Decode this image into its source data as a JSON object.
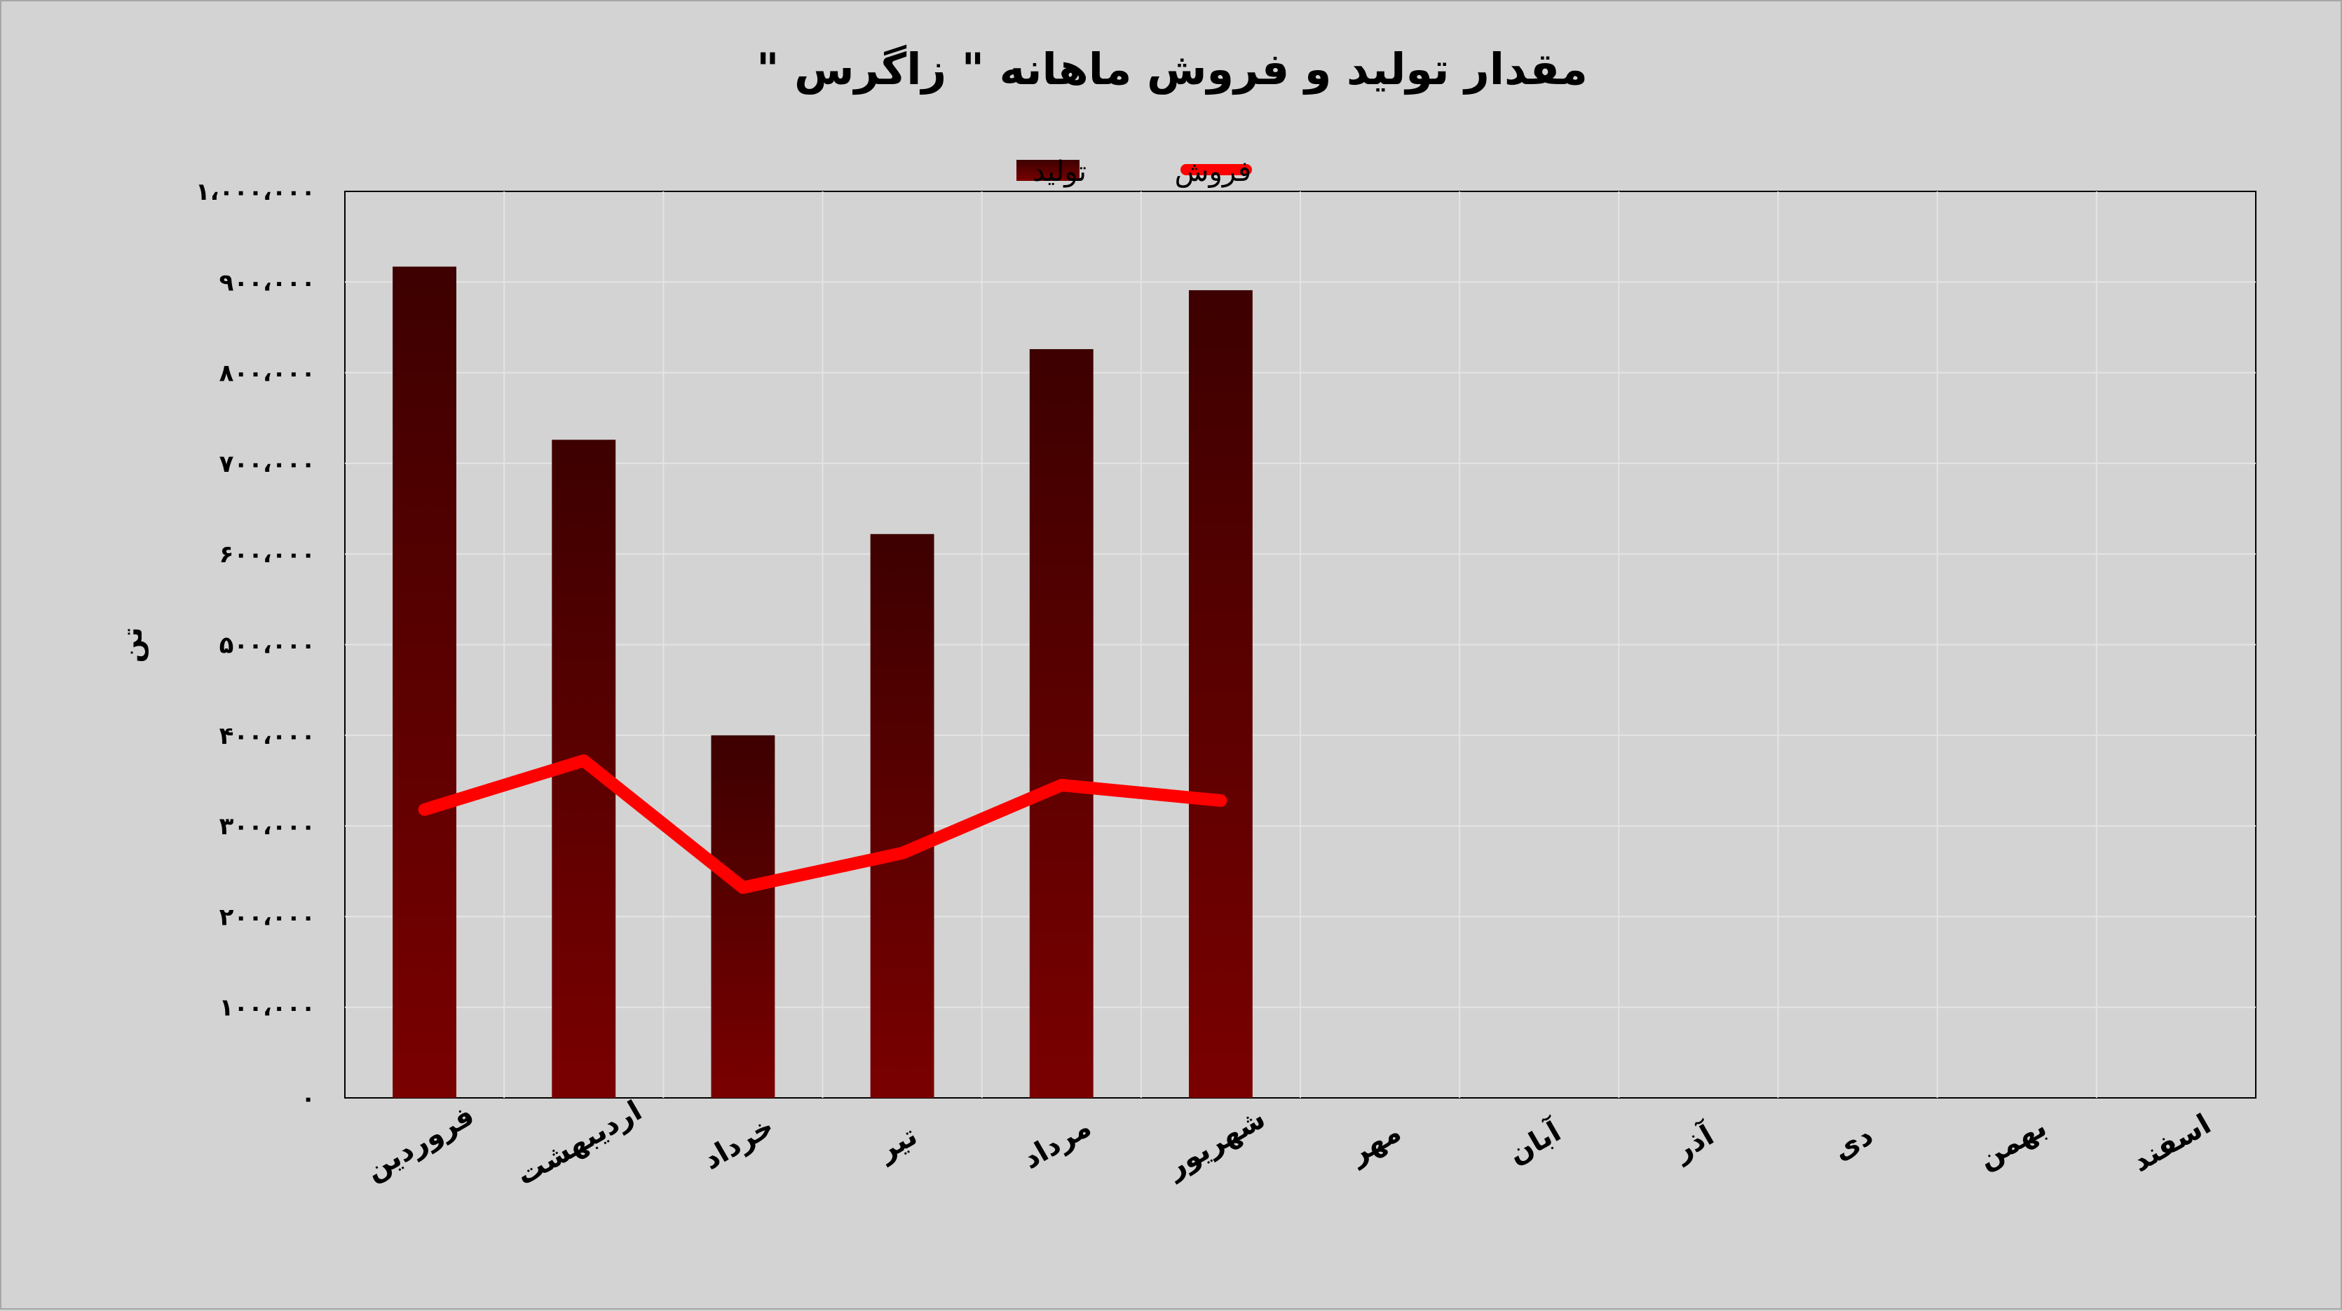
{
  "chart_data": {
    "type": "bar",
    "title": "مقدار تولید و فروش ماهانه \" زاگرس \"",
    "ylabel": "تن",
    "xlabel": "",
    "categories": [
      "فروردین",
      "اردیبهشت",
      "خرداد",
      "تیر",
      "مرداد",
      "شهریور",
      "مهر",
      "آبان",
      "آذر",
      "دی",
      "بهمن",
      "اسفند"
    ],
    "ylim": [
      0,
      1000000
    ],
    "yticks": [
      0,
      100000,
      200000,
      300000,
      400000,
      500000,
      600000,
      700000,
      800000,
      900000,
      1000000
    ],
    "ytick_labels": [
      "۰",
      "۱۰۰،۰۰۰",
      "۲۰۰،۰۰۰",
      "۳۰۰،۰۰۰",
      "۴۰۰،۰۰۰",
      "۵۰۰،۰۰۰",
      "۶۰۰،۰۰۰",
      "۷۰۰،۰۰۰",
      "۸۰۰،۰۰۰",
      "۹۰۰،۰۰۰",
      "۱،۰۰۰،۰۰۰"
    ],
    "grid": true,
    "legend_position": "top",
    "series": [
      {
        "name": "تولید",
        "type": "bar",
        "color": "#6b0000",
        "values": [
          917000,
          726000,
          400000,
          622000,
          826000,
          891000,
          null,
          null,
          null,
          null,
          null,
          null
        ]
      },
      {
        "name": "فروش",
        "type": "line",
        "color": "#ff0000",
        "values": [
          318000,
          372000,
          232000,
          270000,
          345000,
          328000,
          null,
          null,
          null,
          null,
          null,
          null
        ]
      }
    ]
  }
}
